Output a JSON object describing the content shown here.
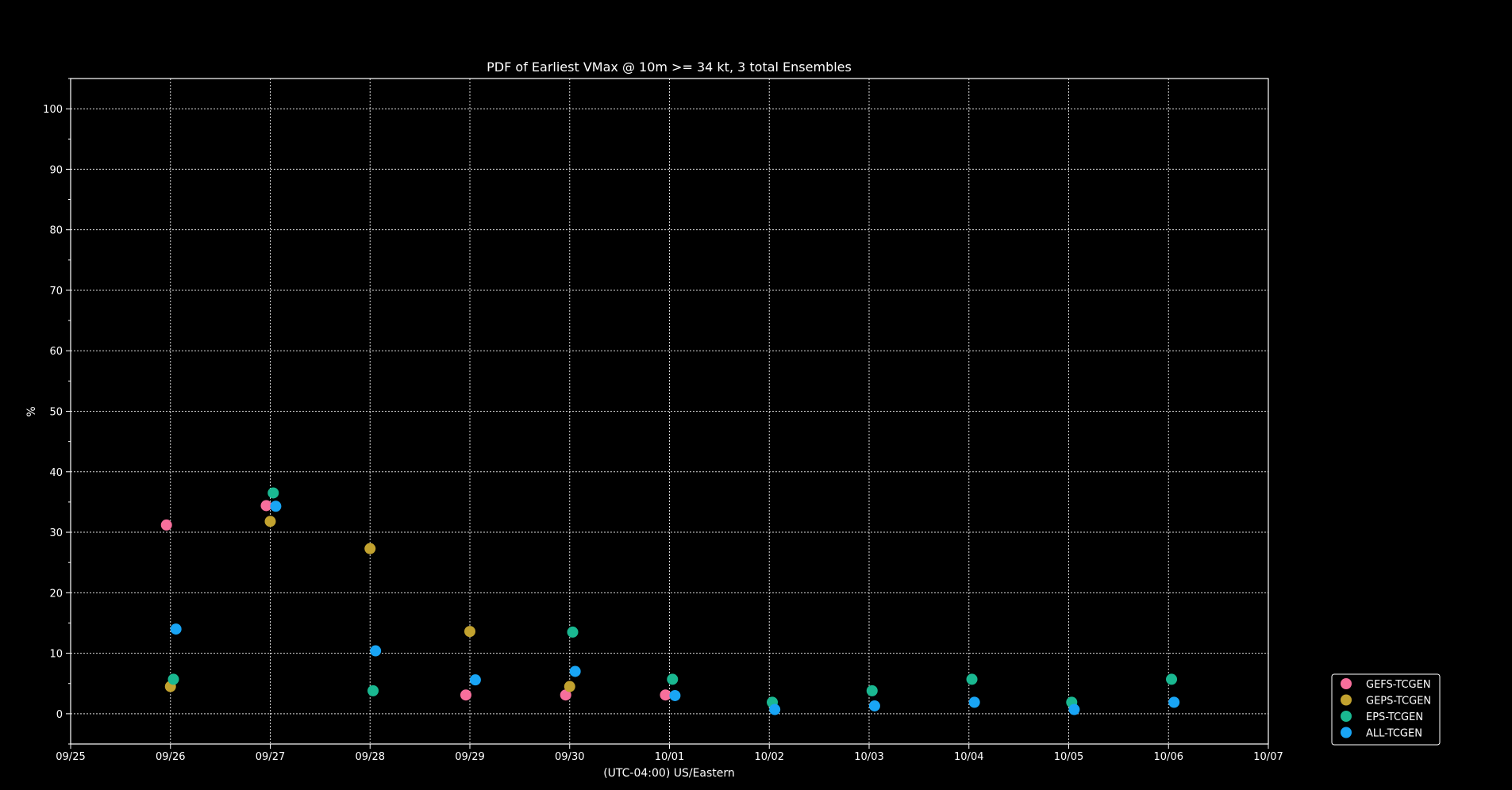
{
  "chart_data": {
    "type": "scatter",
    "title": "PDF of Earliest VMax @ 10m >= 34 kt, 3 total Ensembles",
    "xlabel": "(UTC-04:00) US/Eastern",
    "ylabel": "%",
    "x_tick_labels": [
      "09/25",
      "09/26",
      "09/27",
      "09/28",
      "09/29",
      "09/30",
      "10/01",
      "10/02",
      "10/03",
      "10/04",
      "10/05",
      "10/06",
      "10/07"
    ],
    "y_ticks": [
      0,
      10,
      20,
      30,
      40,
      50,
      60,
      70,
      80,
      90,
      100
    ],
    "xlim": [
      "09/25",
      "10/07"
    ],
    "ylim": [
      -5,
      105
    ],
    "grid": true,
    "legend_position": "right, outside plot, bottom",
    "background": "#000000",
    "foreground": "#ffffff",
    "series": [
      {
        "name": "GEFS-TCGEN",
        "color": "#f76f9c",
        "points": [
          {
            "x": "09/26",
            "y": 31.2
          },
          {
            "x": "09/27",
            "y": 34.4
          },
          {
            "x": "09/29",
            "y": 3.1
          },
          {
            "x": "09/30",
            "y": 3.1
          },
          {
            "x": "10/01",
            "y": 3.1
          }
        ]
      },
      {
        "name": "GEPS-TCGEN",
        "color": "#c2a22f",
        "points": [
          {
            "x": "09/26",
            "y": 4.5
          },
          {
            "x": "09/27",
            "y": 31.8
          },
          {
            "x": "09/28",
            "y": 27.3
          },
          {
            "x": "09/29",
            "y": 13.6
          },
          {
            "x": "09/30",
            "y": 4.5
          }
        ]
      },
      {
        "name": "EPS-TCGEN",
        "color": "#1ab891",
        "points": [
          {
            "x": "09/26",
            "y": 5.7
          },
          {
            "x": "09/27",
            "y": 36.5
          },
          {
            "x": "09/28",
            "y": 3.8
          },
          {
            "x": "09/30",
            "y": 13.5
          },
          {
            "x": "10/01",
            "y": 5.7
          },
          {
            "x": "10/02",
            "y": 1.9
          },
          {
            "x": "10/03",
            "y": 3.8
          },
          {
            "x": "10/04",
            "y": 5.7
          },
          {
            "x": "10/05",
            "y": 1.9
          },
          {
            "x": "10/06",
            "y": 5.7
          }
        ]
      },
      {
        "name": "ALL-TCGEN",
        "color": "#19a5f5",
        "points": [
          {
            "x": "09/26",
            "y": 14.0
          },
          {
            "x": "09/27",
            "y": 34.3
          },
          {
            "x": "09/28",
            "y": 10.4
          },
          {
            "x": "09/29",
            "y": 5.6
          },
          {
            "x": "09/30",
            "y": 7.0
          },
          {
            "x": "10/01",
            "y": 3.0
          },
          {
            "x": "10/02",
            "y": 0.7
          },
          {
            "x": "10/03",
            "y": 1.3
          },
          {
            "x": "10/04",
            "y": 1.9
          },
          {
            "x": "10/05",
            "y": 0.7
          },
          {
            "x": "10/06",
            "y": 1.9
          }
        ]
      }
    ]
  }
}
